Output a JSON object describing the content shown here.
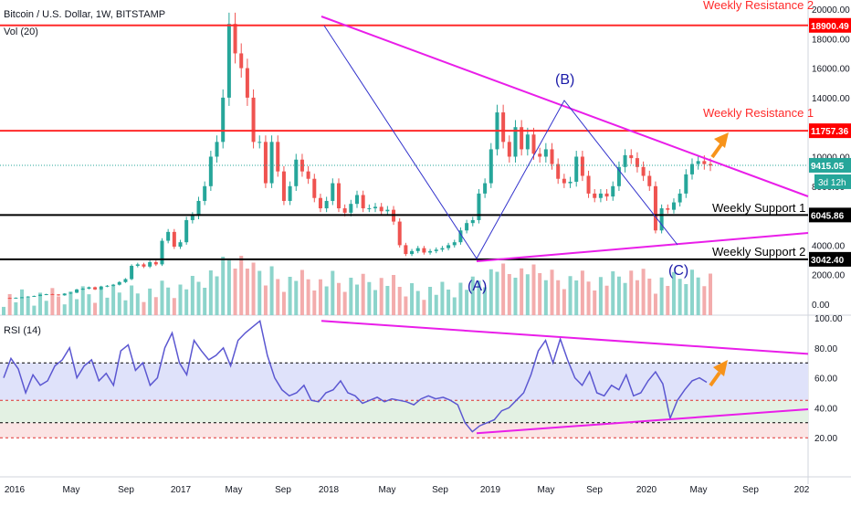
{
  "chart_data": {
    "type": "line",
    "title": "Bitcoin / U.S. Dollar, 1W, BITSTAMP",
    "volume_label": "Vol (20)",
    "rsi_label": "RSI (14)",
    "x_ticks": [
      "2016",
      "May",
      "Sep",
      "2017",
      "May",
      "Sep",
      "2018",
      "May",
      "Sep",
      "2019",
      "May",
      "Sep",
      "2020",
      "May",
      "Sep",
      "202"
    ],
    "price_axis_ticks": [
      "20000.00",
      "18000.00",
      "16000.00",
      "14000.00",
      "12000.00",
      "10000.00",
      "8000.00",
      "6000.00",
      "4000.00",
      "2000.00",
      "0.00"
    ],
    "rsi_axis_ticks": [
      "100.00",
      "80.00",
      "60.00",
      "40.00",
      "20.00"
    ],
    "price_markers": [
      {
        "value": "18900.49",
        "color": "#ff0000"
      },
      {
        "value": "11757.36",
        "color": "#ff0000"
      },
      {
        "value": "9415.05",
        "color": "#26a69a"
      },
      {
        "value": "6045.86",
        "color": "#000000"
      },
      {
        "value": "3042.40",
        "color": "#000000"
      }
    ],
    "countdown": "3d 12h",
    "levels": [
      {
        "label": "Weekly Resistance 2",
        "price": 18900.49,
        "color": "#ff2a2a"
      },
      {
        "label": "Weekly Resistance 1",
        "price": 11757.36,
        "color": "#ff2a2a"
      },
      {
        "label": "Weekly Support 1",
        "price": 6045.86,
        "color": "#000000"
      },
      {
        "label": "Weekly Support 2",
        "price": 3042.4,
        "color": "#000000"
      }
    ],
    "wave_labels": [
      "(A)",
      "(B)",
      "(C)"
    ],
    "rsi_levels": [
      70,
      45,
      30,
      20
    ],
    "price_series": [
      430,
      420,
      440,
      470,
      520,
      560,
      640,
      680,
      660,
      600,
      720,
      780,
      1000,
      1050,
      1150,
      1000,
      1200,
      1250,
      1320,
      1500,
      1700,
      2600,
      2700,
      2550,
      2850,
      2700,
      4300,
      4900,
      3900,
      4200,
      5700,
      6000,
      7000,
      8000,
      10000,
      11000,
      14000,
      19000,
      17000,
      16000,
      14000,
      11000,
      11000,
      8200,
      11000,
      9000,
      7000,
      8000,
      9800,
      9000,
      8500,
      7200,
      6500,
      7000,
      8200,
      6500,
      6200,
      6800,
      7400,
      6500,
      6500,
      6600,
      6300,
      6400,
      5600,
      4000,
      3400,
      3600,
      3800,
      3500,
      3600,
      3700,
      3800,
      4000,
      4200,
      5000,
      5500,
      5700,
      7500,
      8200,
      10500,
      13000,
      11000,
      10000,
      12000,
      10500,
      11500,
      10200,
      10000,
      10500,
      9500,
      8500,
      8200,
      8300,
      10000,
      8700,
      7500,
      7200,
      7500,
      7300,
      8000,
      9300,
      10100,
      9900,
      9300,
      8700,
      8000,
      5000,
      6500,
      6400,
      6900,
      7500,
      8800,
      9500,
      9700,
      9500,
      9400
    ],
    "rsi_series": [
      60,
      73,
      66,
      50,
      62,
      55,
      58,
      68,
      72,
      80,
      60,
      68,
      72,
      58,
      63,
      55,
      78,
      82,
      65,
      70,
      55,
      60,
      80,
      90,
      70,
      62,
      85,
      78,
      72,
      75,
      80,
      68,
      85,
      90,
      94,
      98,
      75,
      60,
      52,
      48,
      50,
      55,
      45,
      44,
      50,
      52,
      58,
      50,
      48,
      43,
      45,
      47,
      44,
      46,
      45,
      44,
      42,
      46,
      48,
      46,
      47,
      45,
      42,
      30,
      24,
      28,
      30,
      32,
      38,
      40,
      45,
      50,
      62,
      78,
      85,
      70,
      86,
      72,
      60,
      55,
      64,
      50,
      48,
      55,
      52,
      62,
      48,
      50,
      58,
      64,
      56,
      33,
      45,
      52,
      58,
      60,
      57
    ]
  }
}
